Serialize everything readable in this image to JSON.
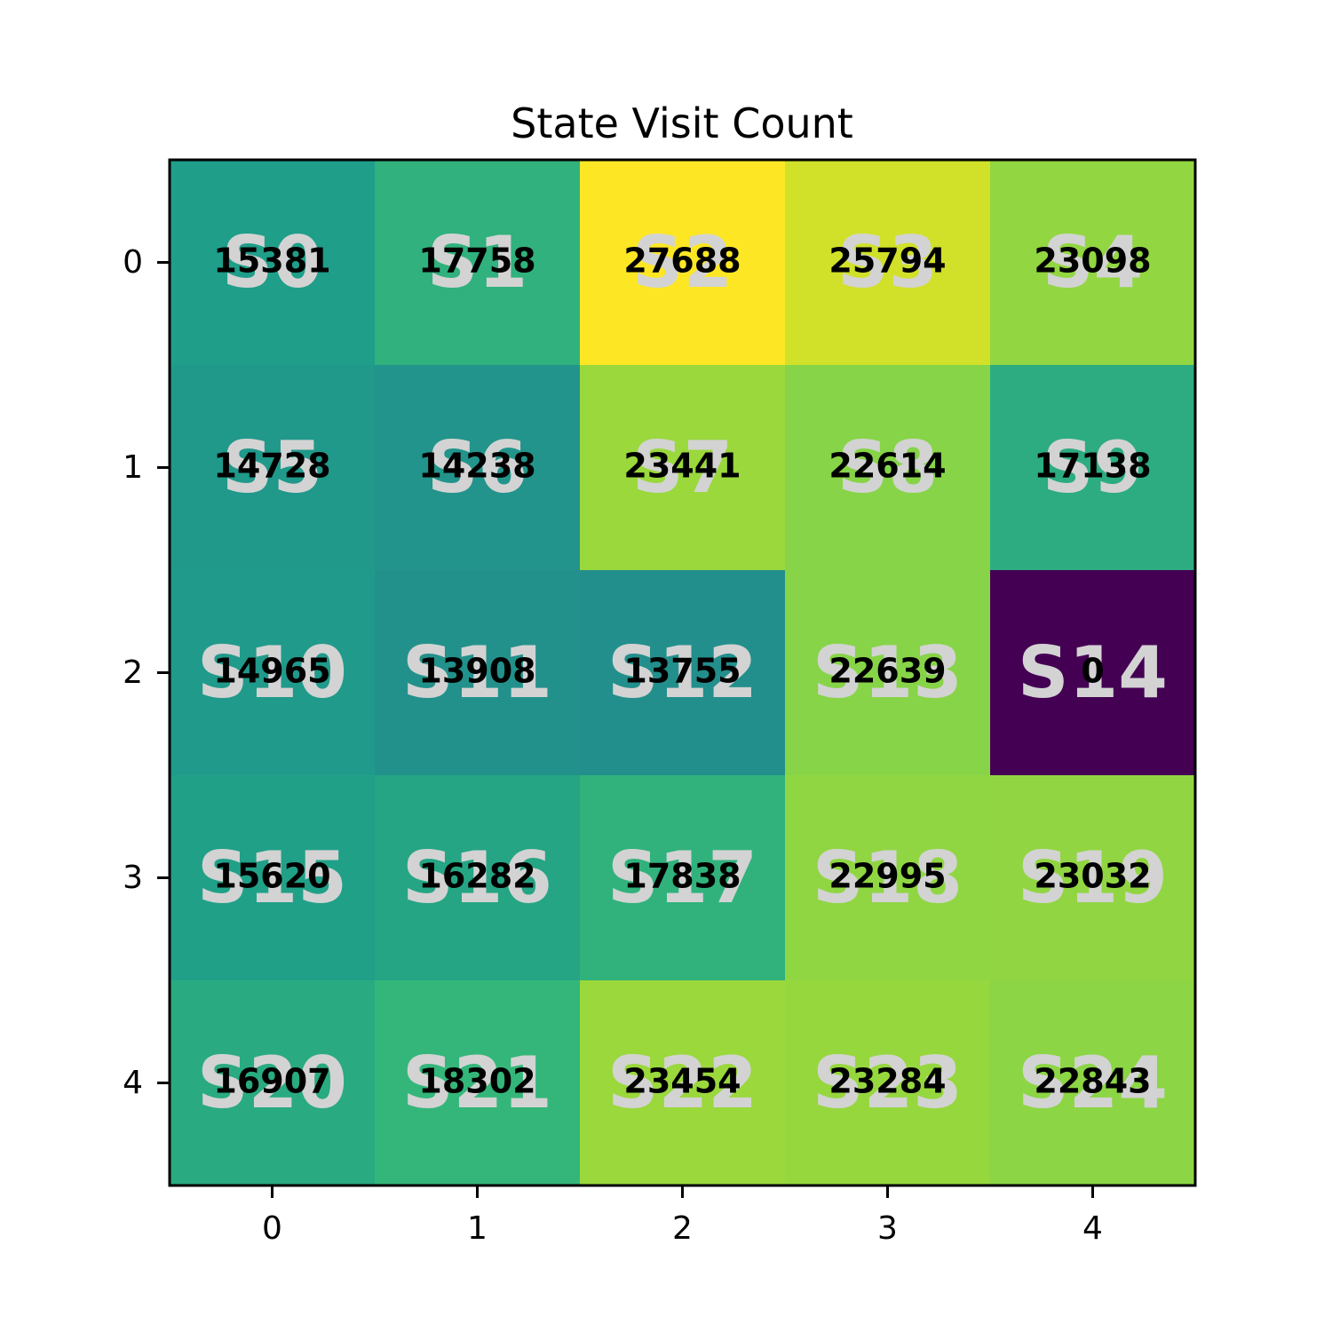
{
  "chart_data": {
    "type": "heatmap",
    "title": "State Visit Count",
    "xlabel": "",
    "ylabel": "",
    "x_ticks": [
      "0",
      "1",
      "2",
      "3",
      "4"
    ],
    "y_ticks": [
      "0",
      "1",
      "2",
      "3",
      "4"
    ],
    "colormap": "viridis",
    "value_range": [
      0,
      27688
    ],
    "legend": "none",
    "grid": false,
    "state_labels": [
      [
        "S0",
        "S1",
        "S2",
        "S3",
        "S4"
      ],
      [
        "S5",
        "S6",
        "S7",
        "S8",
        "S9"
      ],
      [
        "S10",
        "S11",
        "S12",
        "S13",
        "S14"
      ],
      [
        "S15",
        "S16",
        "S17",
        "S18",
        "S19"
      ],
      [
        "S20",
        "S21",
        "S22",
        "S23",
        "S24"
      ]
    ],
    "values": [
      [
        15381,
        17758,
        27688,
        25794,
        23098
      ],
      [
        14728,
        14238,
        23441,
        22614,
        17138
      ],
      [
        14965,
        13908,
        13755,
        22639,
        0
      ],
      [
        15620,
        16282,
        17838,
        22995,
        23032
      ],
      [
        16907,
        18302,
        23454,
        23284,
        22843
      ]
    ],
    "label_colors": {
      "state_label": "#d3d3d3",
      "count_label": "#000000"
    }
  }
}
